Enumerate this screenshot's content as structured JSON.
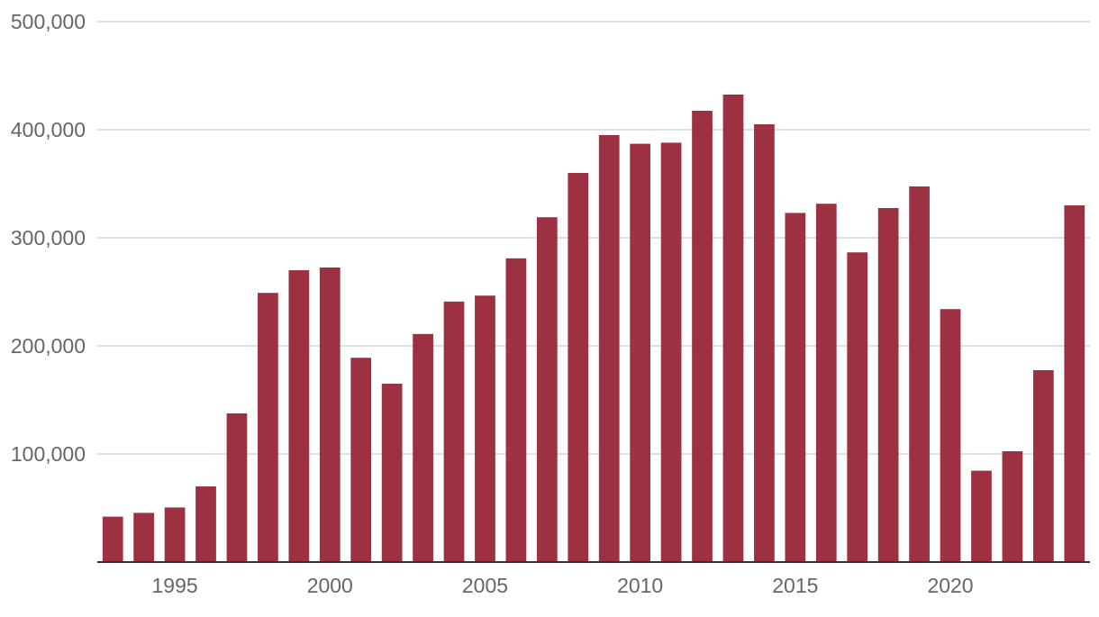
{
  "chart_data": {
    "type": "bar",
    "title": "",
    "xlabel": "",
    "ylabel": "",
    "categories": [
      1993,
      1994,
      1995,
      1996,
      1997,
      1998,
      1999,
      2000,
      2001,
      2002,
      2003,
      2004,
      2005,
      2006,
      2007,
      2008,
      2009,
      2010,
      2011,
      2012,
      2013,
      2014,
      2015,
      2016,
      2017,
      2018,
      2019,
      2020,
      2021,
      2022,
      2023,
      2024
    ],
    "values": [
      42000,
      45500,
      50500,
      70000,
      137500,
      249000,
      270000,
      272500,
      189000,
      165000,
      211000,
      241000,
      246500,
      281000,
      319000,
      360000,
      395000,
      387000,
      388000,
      417500,
      432500,
      405000,
      323000,
      331500,
      286500,
      327500,
      347500,
      234000,
      84500,
      102500,
      177500,
      330000
    ],
    "ylim": [
      0,
      500000
    ],
    "y_ticks": [
      100000,
      200000,
      300000,
      400000,
      500000
    ],
    "y_tick_labels": [
      "100,000",
      "200,000",
      "300,000",
      "400,000",
      "500,000"
    ],
    "x_ticks": [
      1995,
      2000,
      2005,
      2010,
      2015,
      2020
    ],
    "x_tick_labels": [
      "1995",
      "2000",
      "2005",
      "2010",
      "2015",
      "2020"
    ],
    "grid": true,
    "colors": {
      "bar": "#9d3142",
      "grid": "#cccccc",
      "axis": "#333333",
      "tick_text": "#666666"
    }
  }
}
